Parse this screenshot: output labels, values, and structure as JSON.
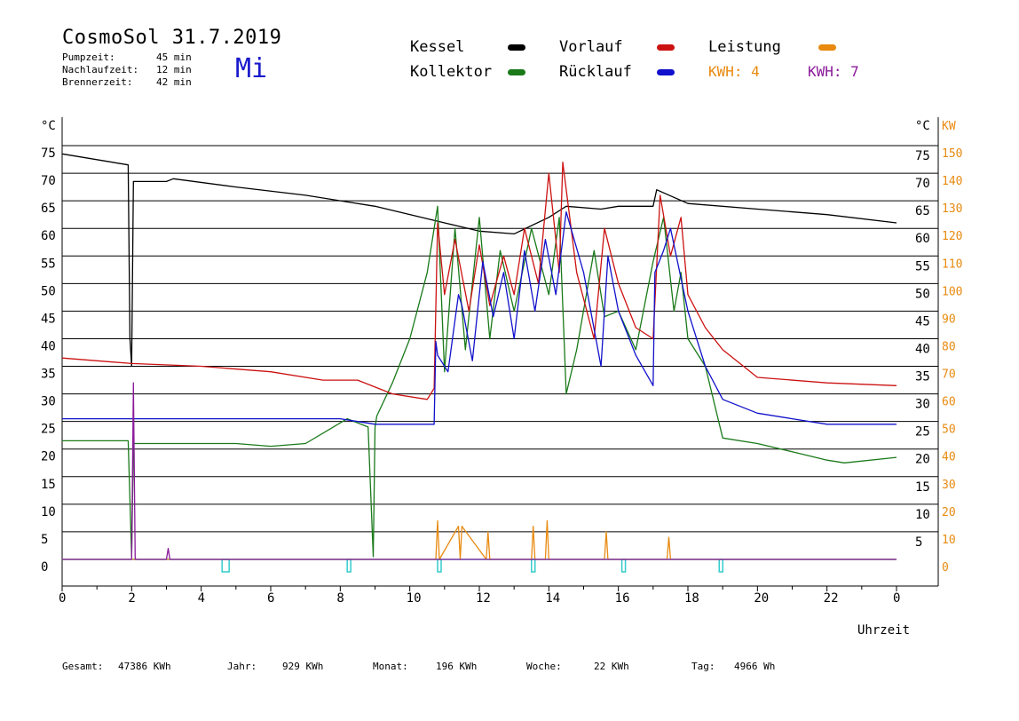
{
  "header": {
    "title": "CosmoSol 31.7.2019",
    "weekday": "Mi",
    "stats": [
      {
        "label": "Pumpzeit:",
        "value": "45 min"
      },
      {
        "label": "Nachlaufzeit:",
        "value": "12 min"
      },
      {
        "label": "Brennerzeit:",
        "value": "42 min"
      }
    ]
  },
  "legend": {
    "kessel": "Kessel",
    "kollektor": "Kollektor",
    "vorlauf": "Vorlauf",
    "ruecklauf": "Rücklauf",
    "leistung": "Leistung",
    "kwh1": "KWH: 4",
    "kwh2": "KWH: 7"
  },
  "colors": {
    "kessel": "#000000",
    "kollektor": "#1a7a1a",
    "vorlauf": "#cc1111",
    "ruecklauf": "#1111cc",
    "leistung": "#e88a10",
    "kwh2": "#8a1a9a",
    "pump": "#33cccc"
  },
  "footer": [
    {
      "label": "Gesamt:",
      "value": "47386 KWh"
    },
    {
      "label": "Jahr:",
      "value": "929 KWh"
    },
    {
      "label": "Monat:",
      "value": "196 KWh"
    },
    {
      "label": "Woche:",
      "value": "22 KWh"
    },
    {
      "label": "Tag:",
      "value": "4966 Wh"
    }
  ],
  "chart_data": {
    "type": "line",
    "xlabel": "Uhrzeit",
    "ylabel_left": "°C",
    "ylabel_right_1": "°C",
    "ylabel_right_2": "KW",
    "xlim": [
      0,
      24
    ],
    "ylim": [
      0,
      75
    ],
    "ylim_right_kw": [
      0,
      150
    ],
    "x_ticks": [
      "0",
      "2",
      "4",
      "6",
      "8",
      "10",
      "12",
      "14",
      "16",
      "18",
      "20",
      "22",
      "0"
    ],
    "y_ticks_left": [
      "0",
      "5",
      "10",
      "15",
      "20",
      "25",
      "30",
      "35",
      "40",
      "45",
      "50",
      "55",
      "60",
      "65",
      "70",
      "75"
    ],
    "y_ticks_right": [
      "5",
      "10",
      "15",
      "20",
      "25",
      "30",
      "35",
      "40",
      "45",
      "50",
      "55",
      "60",
      "65",
      "70",
      "75"
    ],
    "y_ticks_kw": [
      "0",
      "10",
      "20",
      "30",
      "40",
      "50",
      "60",
      "70",
      "80",
      "90",
      "100",
      "110",
      "120",
      "130",
      "140",
      "150"
    ],
    "grid": true,
    "series": [
      {
        "name": "Kessel",
        "x": [
          0,
          1.9,
          1.95,
          2.0,
          2.05,
          3.0,
          3.2,
          5,
          7,
          9,
          11,
          12,
          13,
          14,
          14.5,
          15.5,
          16,
          17,
          17.1,
          18,
          20,
          22,
          24
        ],
        "y": [
          73.5,
          71.5,
          40,
          35,
          68.5,
          68.5,
          69,
          67.5,
          66,
          64,
          61,
          59.5,
          59,
          62,
          64,
          63.5,
          64,
          64,
          67,
          64.5,
          63.5,
          62.5,
          61
        ]
      },
      {
        "name": "Kollektor",
        "x": [
          0,
          1.9,
          2.0,
          2.05,
          3,
          5,
          6,
          7,
          7.8,
          8.2,
          8.8,
          8.95,
          9.0,
          9.05,
          9.5,
          10,
          10.5,
          10.8,
          11.0,
          11.3,
          11.6,
          12,
          12.3,
          12.6,
          13,
          13.5,
          14,
          14.3,
          14.5,
          14.8,
          15.3,
          15.6,
          16,
          16.5,
          17,
          17.3,
          17.6,
          17.8,
          18,
          18.5,
          19,
          20,
          21,
          22,
          22.5,
          24
        ],
        "y": [
          21.5,
          21.5,
          0.5,
          21,
          21,
          21,
          20.5,
          21,
          24,
          25.5,
          24,
          0.5,
          24,
          26,
          32,
          40,
          52,
          64,
          34,
          60,
          38,
          62,
          40,
          56,
          45,
          60,
          48,
          62,
          30,
          38,
          56,
          44,
          45,
          38,
          54,
          62,
          45,
          52,
          40,
          35,
          22,
          21,
          19.5,
          18,
          17.5,
          18.5
        ]
      },
      {
        "name": "Vorlauf",
        "x": [
          0,
          2,
          4,
          6,
          7.5,
          8.5,
          9.5,
          10.5,
          10.7,
          10.8,
          11,
          11.3,
          11.7,
          12,
          12.3,
          12.7,
          13,
          13.3,
          13.7,
          14,
          14.3,
          14.4,
          14.8,
          15.3,
          15.6,
          16,
          16.5,
          17,
          17.2,
          17.5,
          17.8,
          18,
          18.5,
          19,
          20,
          22,
          24
        ],
        "y": [
          36.5,
          35.5,
          35,
          34,
          32.5,
          32.5,
          30,
          29,
          31,
          61,
          48,
          58,
          45,
          57,
          46,
          55,
          48,
          60,
          50,
          70,
          52,
          72,
          52,
          40,
          60,
          50,
          42,
          40,
          66,
          55,
          62,
          48,
          42,
          38,
          33,
          32,
          31.5
        ]
      },
      {
        "name": "Rücklauf",
        "x": [
          0,
          2,
          4,
          6,
          8,
          8.5,
          9,
          9.5,
          10.7,
          10.75,
          10.8,
          11.1,
          11.4,
          11.5,
          11.8,
          12.1,
          12.4,
          12.7,
          13,
          13.3,
          13.6,
          13.9,
          14.2,
          14.5,
          15,
          15.5,
          15.7,
          16,
          16.5,
          17,
          17.05,
          17.3,
          17.5,
          18,
          18.5,
          19,
          20,
          21,
          22,
          24
        ],
        "y": [
          25.5,
          25.5,
          25.5,
          25.5,
          25.5,
          25,
          24.5,
          24.5,
          24.5,
          39.5,
          37,
          34,
          48,
          46,
          36,
          54,
          44,
          52,
          40,
          56,
          45,
          58,
          48,
          63,
          52,
          35,
          55,
          45,
          37,
          31.5,
          52,
          56,
          60,
          45,
          35,
          29,
          26.5,
          25.5,
          24.5,
          24.5
        ]
      },
      {
        "name": "Leistung",
        "unit": "kW",
        "x": [
          0,
          10.75,
          10.8,
          10.85,
          11.4,
          11.45,
          11.5,
          12.2,
          12.25,
          12.3,
          13.5,
          13.55,
          13.6,
          13.9,
          13.95,
          14.0,
          15.6,
          15.65,
          15.7,
          17.4,
          17.45,
          17.5,
          24
        ],
        "y": [
          0,
          0,
          14,
          0,
          12,
          0,
          12,
          0,
          10,
          0,
          0,
          12,
          0,
          0,
          14,
          0,
          0,
          10,
          0,
          0,
          8,
          0,
          0
        ]
      },
      {
        "name": "KWH: 7",
        "x": [
          0,
          2.0,
          2.05,
          2.1,
          3,
          3.05,
          3.1,
          24
        ],
        "y": [
          0,
          0,
          32,
          0,
          0,
          2,
          0,
          0
        ]
      }
    ],
    "pump_on_x": [
      4.6,
      8.2,
      10.8,
      13.5,
      16.1,
      18.9
    ]
  }
}
